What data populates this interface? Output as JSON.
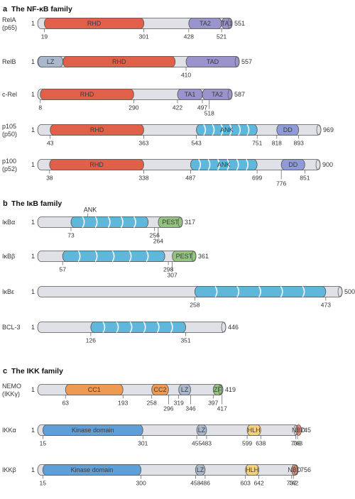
{
  "sections": [
    {
      "letter": "a",
      "title": "The NF-κB family",
      "proteins": [
        {
          "name_lines": [
            "RelA",
            "(p65)"
          ],
          "length": 551,
          "domains": [
            {
              "label": "RHD",
              "start": 19,
              "end": 301,
              "type": "rhd"
            },
            {
              "label": "TA2",
              "start": 428,
              "end": 521,
              "type": "tad"
            },
            {
              "label": "TA1",
              "start": 521,
              "end": 551,
              "type": "tad"
            }
          ],
          "ticks": [
            {
              "label": "19",
              "pos": 19
            },
            {
              "label": "301",
              "pos": 301
            },
            {
              "label": "428",
              "pos": 428
            },
            {
              "label": "521",
              "pos": 521
            }
          ]
        },
        {
          "name_lines": [
            "RelB"
          ],
          "length": 557,
          "domains": [
            {
              "label": "LZ",
              "start": 1,
              "end": 70,
              "type": "lz"
            },
            {
              "label": "RHD",
              "start": 70,
              "end": 380,
              "type": "rhd"
            },
            {
              "label": "TAD",
              "start": 410,
              "end": 557,
              "type": "tad"
            }
          ],
          "ticks": [
            {
              "label": "410",
              "pos": 410
            }
          ]
        },
        {
          "name_lines": [
            "c-Rel"
          ],
          "length": 587,
          "domains": [
            {
              "label": "RHD",
              "start": 8,
              "end": 290,
              "type": "rhd"
            },
            {
              "label": "TA1",
              "start": 422,
              "end": 497,
              "type": "tad"
            },
            {
              "label": "TA2",
              "start": 497,
              "end": 587,
              "type": "tad"
            }
          ],
          "ticks": [
            {
              "label": "8",
              "pos": 8
            },
            {
              "label": "290",
              "pos": 290
            },
            {
              "label": "422",
              "pos": 422
            },
            {
              "label": "497",
              "pos": 497
            },
            {
              "label": "518",
              "pos": 518,
              "row": 1
            }
          ]
        },
        {
          "name_lines": [
            "p105",
            "(p50)"
          ],
          "length": 969,
          "domains": [
            {
              "label": "RHD",
              "start": 43,
              "end": 363,
              "type": "rhd"
            },
            {
              "label": "ANK",
              "start": 543,
              "end": 751,
              "type": "ank",
              "repeats": 7
            },
            {
              "label": "DD",
              "start": 818,
              "end": 893,
              "type": "dd"
            }
          ],
          "ticks": [
            {
              "label": "43",
              "pos": 43
            },
            {
              "label": "363",
              "pos": 363
            },
            {
              "label": "543",
              "pos": 543
            },
            {
              "label": "751",
              "pos": 751
            },
            {
              "label": "818",
              "pos": 818
            },
            {
              "label": "893",
              "pos": 893
            }
          ]
        },
        {
          "name_lines": [
            "p100",
            "(p52)"
          ],
          "length": 900,
          "domains": [
            {
              "label": "RHD",
              "start": 38,
              "end": 338,
              "type": "rhd"
            },
            {
              "label": "ANK",
              "start": 487,
              "end": 699,
              "type": "ank",
              "repeats": 7
            },
            {
              "label": "DD",
              "start": 776,
              "end": 851,
              "type": "dd"
            }
          ],
          "ticks": [
            {
              "label": "38",
              "pos": 38
            },
            {
              "label": "338",
              "pos": 338
            },
            {
              "label": "487",
              "pos": 487
            },
            {
              "label": "699",
              "pos": 699
            },
            {
              "label": "776",
              "pos": 776,
              "row": 1
            },
            {
              "label": "851",
              "pos": 851
            }
          ]
        }
      ]
    },
    {
      "letter": "b",
      "title": "The IκB family",
      "proteins": [
        {
          "name_lines": [
            "IκBα"
          ],
          "length": 317,
          "top_label": {
            "label": "ANK",
            "pos": 110
          },
          "domains": [
            {
              "label": "",
              "start": 73,
              "end": 242,
              "type": "ank",
              "repeats": 6
            },
            {
              "label": "PEST",
              "start": 264,
              "end": 317,
              "type": "pest"
            }
          ],
          "ticks": [
            {
              "label": "73",
              "pos": 73
            },
            {
              "label": "256",
              "pos": 256
            },
            {
              "label": "264",
              "pos": 264,
              "row": 1
            }
          ]
        },
        {
          "name_lines": [
            "IκBβ"
          ],
          "length": 361,
          "domains": [
            {
              "label": "",
              "start": 57,
              "end": 290,
              "type": "ank",
              "repeats": 6
            },
            {
              "label": "PEST",
              "start": 307,
              "end": 361,
              "type": "pest"
            }
          ],
          "ticks": [
            {
              "label": "57",
              "pos": 57
            },
            {
              "label": "298",
              "pos": 298
            },
            {
              "label": "307",
              "pos": 307,
              "row": 1
            }
          ]
        },
        {
          "name_lines": [
            "IκBε"
          ],
          "length": 500,
          "domains": [
            {
              "label": "",
              "start": 258,
              "end": 473,
              "type": "ank",
              "repeats": 6
            }
          ],
          "ticks": [
            {
              "label": "258",
              "pos": 258
            },
            {
              "label": "473",
              "pos": 473
            }
          ]
        },
        {
          "name_lines": [
            "BCL-3"
          ],
          "length": 446,
          "domains": [
            {
              "label": "",
              "start": 126,
              "end": 351,
              "type": "ank",
              "repeats": 7
            }
          ],
          "ticks": [
            {
              "label": "126",
              "pos": 126
            },
            {
              "label": "351",
              "pos": 351
            }
          ]
        }
      ]
    },
    {
      "letter": "c",
      "title": "The IKK family",
      "proteins": [
        {
          "name_lines": [
            "NEMO",
            "(IKKγ)"
          ],
          "length": 419,
          "domains": [
            {
              "label": "CC1",
              "start": 63,
              "end": 193,
              "type": "cc"
            },
            {
              "label": "CC2",
              "start": 258,
              "end": 296,
              "type": "cc"
            },
            {
              "label": "LZ",
              "start": 319,
              "end": 346,
              "type": "lz"
            },
            {
              "label": "ZF",
              "start": 397,
              "end": 417,
              "type": "zf"
            }
          ],
          "ticks": [
            {
              "label": "63",
              "pos": 63
            },
            {
              "label": "193",
              "pos": 193
            },
            {
              "label": "258",
              "pos": 258
            },
            {
              "label": "296",
              "pos": 296,
              "row": 1
            },
            {
              "label": "319",
              "pos": 319
            },
            {
              "label": "346",
              "pos": 346,
              "row": 1
            },
            {
              "label": "397",
              "pos": 397
            },
            {
              "label": "417",
              "pos": 417,
              "row": 1
            }
          ]
        },
        {
          "name_lines": [
            "IKKα"
          ],
          "length": 745,
          "domains": [
            {
              "label": "Kinase domain",
              "start": 15,
              "end": 301,
              "type": "kinase"
            },
            {
              "label": "LZ",
              "start": 455,
              "end": 483,
              "type": "lz"
            },
            {
              "label": "HLH",
              "start": 599,
              "end": 638,
              "type": "hlh"
            },
            {
              "label": "NBD",
              "start": 738,
              "end": 743,
              "type": "nbd"
            }
          ],
          "ticks": [
            {
              "label": "15",
              "pos": 15
            },
            {
              "label": "301",
              "pos": 301
            },
            {
              "label": "455",
              "pos": 455
            },
            {
              "label": "483",
              "pos": 483
            },
            {
              "label": "599",
              "pos": 599
            },
            {
              "label": "638",
              "pos": 638
            },
            {
              "label": "738",
              "pos": 738
            },
            {
              "label": "743",
              "pos": 743
            }
          ]
        },
        {
          "name_lines": [
            "IKKβ"
          ],
          "length": 756,
          "domains": [
            {
              "label": "Kinase domain",
              "start": 15,
              "end": 300,
              "type": "kinase"
            },
            {
              "label": "LZ",
              "start": 458,
              "end": 486,
              "type": "lz"
            },
            {
              "label": "HLH",
              "start": 603,
              "end": 642,
              "type": "hlh"
            },
            {
              "label": "NBD",
              "start": 737,
              "end": 742,
              "type": "nbd"
            }
          ],
          "ticks": [
            {
              "label": "15",
              "pos": 15
            },
            {
              "label": "300",
              "pos": 300
            },
            {
              "label": "458",
              "pos": 458
            },
            {
              "label": "486",
              "pos": 486
            },
            {
              "label": "603",
              "pos": 603
            },
            {
              "label": "642",
              "pos": 642
            },
            {
              "label": "737",
              "pos": 737
            },
            {
              "label": "742",
              "pos": 742
            }
          ]
        }
      ]
    }
  ],
  "start_label": "1",
  "colors": {
    "bar": "#dfe1e6",
    "rhd": "#e0604a",
    "tad": "#9a94cc",
    "lz": "#a9b8cc",
    "ank": "#5fb8dc",
    "dd": "#8f9bd6",
    "pest": "#93c47d",
    "cc": "#ef9a52",
    "zf": "#93c47d",
    "kinase": "#5f9fd8",
    "hlh": "#f4d27a",
    "nbd": "#ec8e7a"
  }
}
